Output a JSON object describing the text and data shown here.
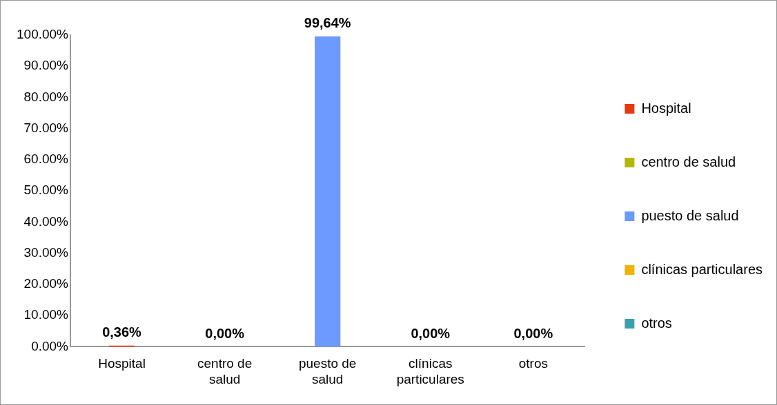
{
  "chart_data": {
    "type": "bar",
    "categories": [
      "Hospital",
      "centro de salud",
      "puesto de salud",
      "clínicas particulares",
      "otros"
    ],
    "series": [
      {
        "name": "Hospital",
        "color": "#e8380d",
        "values": [
          0.36,
          null,
          null,
          null,
          null
        ],
        "value_labels": [
          "0,36%",
          null,
          null,
          null,
          null
        ]
      },
      {
        "name": "centro de salud",
        "color": "#b4b800",
        "values": [
          null,
          0,
          null,
          null,
          null
        ],
        "value_labels": [
          null,
          "0,00%",
          null,
          null,
          null
        ]
      },
      {
        "name": "puesto de salud",
        "color": "#6b9bff",
        "values": [
          null,
          null,
          99.64,
          null,
          null
        ],
        "value_labels": [
          null,
          null,
          "99,64%",
          null,
          null
        ]
      },
      {
        "name": "clínicas particulares",
        "color": "#f0b400",
        "values": [
          null,
          null,
          null,
          0,
          null
        ],
        "value_labels": [
          null,
          null,
          null,
          "0,00%",
          null
        ]
      },
      {
        "name": "otros",
        "color": "#3a9fb0",
        "values": [
          null,
          null,
          null,
          null,
          0
        ],
        "value_labels": [
          null,
          null,
          null,
          null,
          "0,00%"
        ]
      }
    ],
    "ylim": [
      0,
      100
    ],
    "yticks": [
      {
        "value": 0,
        "label": "0.00%"
      },
      {
        "value": 10,
        "label": "10.00%"
      },
      {
        "value": 20,
        "label": "20.00%"
      },
      {
        "value": 30,
        "label": "30.00%"
      },
      {
        "value": 40,
        "label": "40.00%"
      },
      {
        "value": 50,
        "label": "50.00%"
      },
      {
        "value": 60,
        "label": "60.00%"
      },
      {
        "value": 70,
        "label": "70.00%"
      },
      {
        "value": 80,
        "label": "80.00%"
      },
      {
        "value": 90,
        "label": "90.00%"
      },
      {
        "value": 100,
        "label": "100.00%"
      }
    ],
    "grid": false,
    "legend": "right"
  }
}
